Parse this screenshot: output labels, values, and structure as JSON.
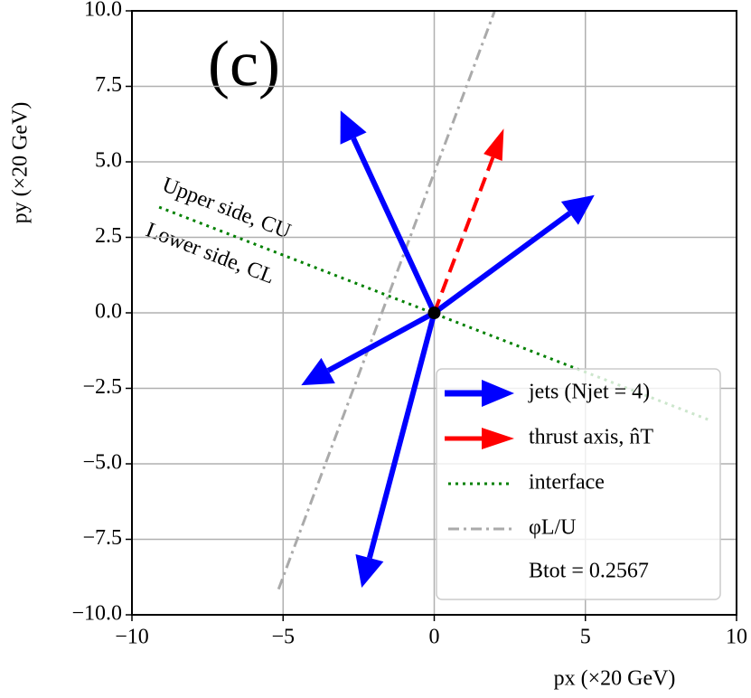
{
  "chart_data": {
    "type": "vector",
    "xlabel": "px (×20 GeV)",
    "ylabel": "py (×20 GeV)",
    "xlim": [
      -10,
      10
    ],
    "ylim": [
      -10,
      10
    ],
    "xticks": [
      {
        "value": -10,
        "label": "−10"
      },
      {
        "value": -5,
        "label": "−5"
      },
      0,
      5,
      10
    ],
    "yticks": [
      {
        "value": -10,
        "label": "−10.0"
      },
      {
        "value": -7.5,
        "label": "−7.5"
      },
      {
        "value": -5,
        "label": "−5.0"
      },
      {
        "value": -2.5,
        "label": "−2.5"
      },
      {
        "value": 0,
        "label": "0.0"
      },
      {
        "value": 2.5,
        "label": "2.5"
      },
      {
        "value": 5,
        "label": "5.0"
      },
      {
        "value": 7.5,
        "label": "7.5"
      },
      {
        "value": 10,
        "label": "10.0"
      }
    ],
    "grid": true,
    "origin": [
      0,
      0
    ],
    "series": [
      {
        "name": "jets (Njet = 4)",
        "color": "#0000ff",
        "style": "solid",
        "x": [
          -3.1,
          5.3,
          -4.4,
          -2.4
        ],
        "y": [
          6.7,
          3.9,
          -2.4,
          -9.1
        ]
      },
      {
        "name": "thrust axis, n̂T",
        "color": "#ff0000",
        "style": "dashed",
        "x": [
          2.3
        ],
        "y": [
          6.1
        ]
      }
    ],
    "lines": [
      {
        "name": "interface",
        "color": "#008000",
        "style": "dotted",
        "x": [
          -9.1,
          9.1
        ],
        "y": [
          3.5,
          -3.55
        ]
      },
      {
        "name": "φL/U",
        "color": "#aaaaaa",
        "style": "dashdot",
        "x": [
          -5.15,
          2.0
        ],
        "y": [
          -9.15,
          10.0
        ]
      }
    ],
    "legend_note": "Btot = 0.2567",
    "legend": "lower right",
    "annotations": [
      "(c)",
      "Upper side, CU",
      "Lower side, CL"
    ]
  }
}
